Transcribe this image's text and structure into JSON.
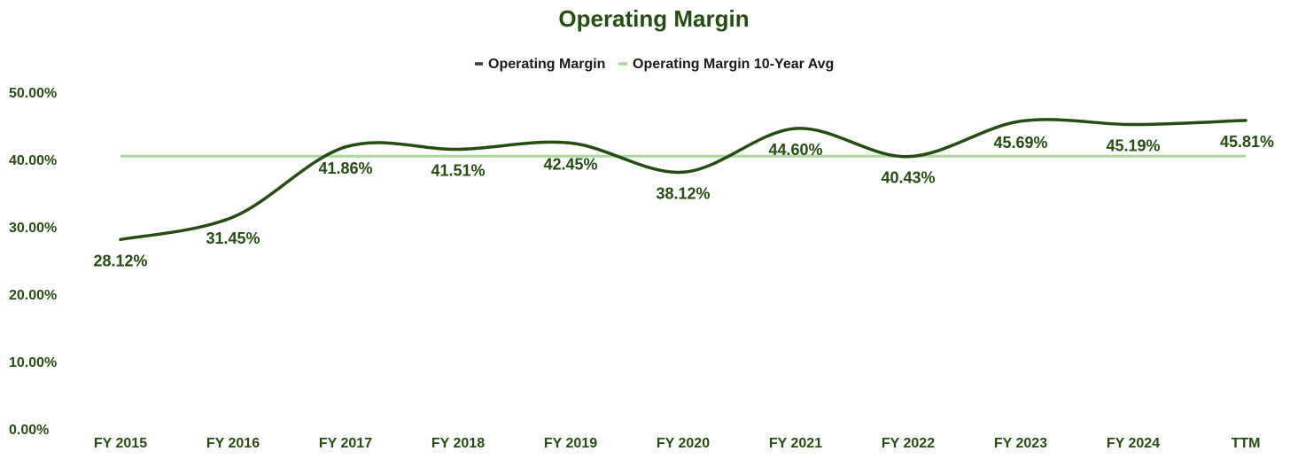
{
  "colors": {
    "series": "#264d11",
    "average": "#a9d99b",
    "title": "#264d11",
    "ticks": "#264d11",
    "labels": "#264d11",
    "legend_text": "#1a1a1a",
    "background": "#ffffff"
  },
  "chart_data": {
    "type": "line",
    "title": "Operating Margin",
    "xlabel": "",
    "ylabel": "",
    "categories": [
      "FY 2015",
      "FY 2016",
      "FY 2017",
      "FY 2018",
      "FY 2019",
      "FY 2020",
      "FY 2021",
      "FY 2022",
      "FY 2023",
      "FY 2024",
      "TTM"
    ],
    "series": [
      {
        "name": "Operating Margin",
        "values": [
          28.12,
          31.45,
          41.86,
          41.51,
          42.45,
          38.12,
          44.6,
          40.43,
          45.69,
          45.19,
          45.81
        ],
        "data_labels": [
          "28.12%",
          "31.45%",
          "41.86%",
          "41.51%",
          "42.45%",
          "38.12%",
          "44.60%",
          "40.43%",
          "45.69%",
          "45.19%",
          "45.81%"
        ],
        "smooth": true
      },
      {
        "name": "Operating Margin 10-Year Avg",
        "values": [
          40.5,
          40.5,
          40.5,
          40.5,
          40.5,
          40.5,
          40.5,
          40.5,
          40.5,
          40.5,
          40.5
        ]
      }
    ],
    "y_ticks": [
      0,
      10,
      20,
      30,
      40,
      50
    ],
    "y_tick_labels": [
      "0.00%",
      "10.00%",
      "20.00%",
      "30.00%",
      "40.00%",
      "50.00%"
    ],
    "ylim": [
      0,
      50
    ],
    "grid": false,
    "legend_position": "top-center"
  }
}
